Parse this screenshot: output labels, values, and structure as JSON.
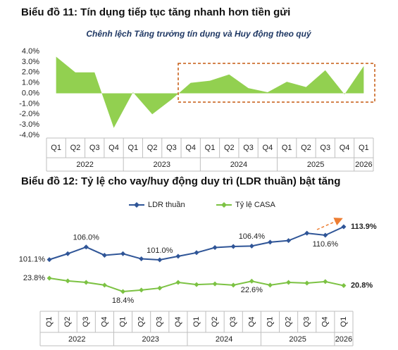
{
  "chart_data": [
    {
      "type": "area",
      "title": "Biểu đồ 11: Tín dụng tiếp tục tăng nhanh hơn tiền gửi",
      "subtitle": "Chênh lệch Tăng trưởng tín dụng và Huy động theo quý",
      "categories": [
        "Q1",
        "Q2",
        "Q3",
        "Q4",
        "Q1",
        "Q2",
        "Q3",
        "Q4",
        "Q1",
        "Q2",
        "Q3",
        "Q4",
        "Q1",
        "Q2",
        "Q3",
        "Q4",
        "Q1"
      ],
      "groups": [
        "2022",
        "2023",
        "2024",
        "2025",
        "2026"
      ],
      "values": [
        3.5,
        2.0,
        2.0,
        -3.3,
        0.1,
        -2.0,
        -0.6,
        1.0,
        1.2,
        1.8,
        0.5,
        0.1,
        1.1,
        0.6,
        2.2,
        -0.1,
        2.6
      ],
      "color": "#92d050",
      "ylim": [
        -4,
        4
      ],
      "yticks": [
        {
          "value": 4,
          "label": "4.0%"
        },
        {
          "value": 3,
          "label": "3.0%"
        },
        {
          "value": 2,
          "label": "2.0%"
        },
        {
          "value": 1,
          "label": "1.0%"
        },
        {
          "value": 0,
          "label": "0.0%"
        },
        {
          "value": -1,
          "label": "-1.0%"
        },
        {
          "value": -2,
          "label": "-2.0%"
        },
        {
          "value": -3,
          "label": "-3.0%"
        },
        {
          "value": -4,
          "label": "-4.0%"
        }
      ]
    },
    {
      "type": "line",
      "title": "Biểu đồ 12: Tỷ lệ cho vay/huy động duy trì (LDR thuần) bật tăng",
      "categories": [
        "Q1",
        "Q2",
        "Q3",
        "Q4",
        "Q1",
        "Q2",
        "Q3",
        "Q4",
        "Q1",
        "Q2",
        "Q3",
        "Q4",
        "Q1",
        "Q2",
        "Q3",
        "Q4",
        "Q1"
      ],
      "groups": [
        "2022",
        "2023",
        "2024",
        "2025",
        "2026"
      ],
      "series": [
        {
          "name": "LDR thuần",
          "color": "#2f5597",
          "values": [
            101.1,
            103.4,
            106.0,
            102.8,
            103.4,
            101.4,
            101.0,
            102.4,
            103.8,
            105.8,
            106.2,
            106.4,
            107.9,
            108.5,
            111.4,
            110.6,
            113.9
          ],
          "value_labels": [
            "101.1%",
            null,
            "106.0%",
            null,
            null,
            null,
            "101.0%",
            null,
            null,
            null,
            null,
            "106.4%",
            null,
            null,
            null,
            "110.6%",
            "113.9%"
          ]
        },
        {
          "name": "Tỷ lệ CASA",
          "color": "#7cc243",
          "values": [
            23.8,
            22.7,
            22.1,
            21.0,
            18.4,
            19.0,
            19.8,
            22.1,
            21.2,
            21.5,
            21.0,
            22.6,
            21.0,
            22.1,
            21.8,
            22.4,
            20.8
          ],
          "value_labels": [
            "23.8%",
            null,
            null,
            null,
            "18.4%",
            null,
            null,
            null,
            null,
            null,
            null,
            "22.6%",
            null,
            null,
            null,
            null,
            "20.8%"
          ]
        }
      ]
    }
  ]
}
